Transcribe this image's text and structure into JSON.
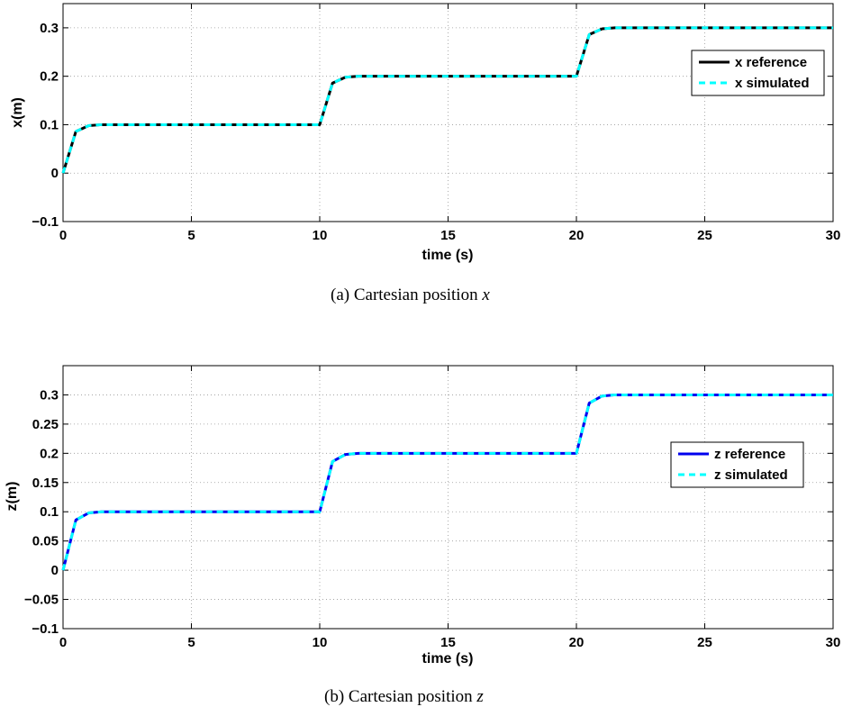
{
  "chart_data": [
    {
      "type": "line",
      "xlabel": "time (s)",
      "ylabel": "x(m)",
      "xlim": [
        0,
        30
      ],
      "ylim": [
        -0.1,
        0.35
      ],
      "xticks": [
        "0",
        "5",
        "10",
        "15",
        "20",
        "25",
        "30"
      ],
      "yticks": [
        "−0.1",
        "0",
        "0.1",
        "0.2",
        "0.3"
      ],
      "grid": true,
      "legend_position": "upper-right",
      "caption_prefix": "(a)  Cartesian position ",
      "caption_var": "x",
      "x": [
        0,
        0.5,
        1,
        1.5,
        2,
        5,
        9.9,
        10,
        10.5,
        11,
        11.5,
        12,
        15,
        19.9,
        20,
        20.5,
        21,
        21.5,
        22,
        25,
        30
      ],
      "series": [
        {
          "name": "x reference",
          "color": "#000000",
          "values": [
            0,
            0.086,
            0.098,
            0.1,
            0.1,
            0.1,
            0.1,
            0.1,
            0.186,
            0.198,
            0.2,
            0.2,
            0.2,
            0.2,
            0.2,
            0.286,
            0.298,
            0.3,
            0.3,
            0.3,
            0.3
          ]
        },
        {
          "name": "x simulated",
          "color": "#00ffff",
          "values": [
            0,
            0.086,
            0.098,
            0.1,
            0.1,
            0.1,
            0.1,
            0.1,
            0.186,
            0.198,
            0.2,
            0.2,
            0.2,
            0.2,
            0.2,
            0.286,
            0.298,
            0.3,
            0.3,
            0.3,
            0.3
          ]
        }
      ]
    },
    {
      "type": "line",
      "xlabel": "time (s)",
      "ylabel": "z(m)",
      "xlim": [
        0,
        30
      ],
      "ylim": [
        -0.1,
        0.35
      ],
      "xticks": [
        "0",
        "5",
        "10",
        "15",
        "20",
        "25",
        "30"
      ],
      "yticks": [
        "−0.1",
        "−0.05",
        "0",
        "0.05",
        "0.1",
        "0.15",
        "0.2",
        "0.25",
        "0.3"
      ],
      "grid": true,
      "legend_position": "right",
      "caption_prefix": "(b) Cartesian position ",
      "caption_var": "z",
      "x": [
        0,
        0.5,
        1,
        1.5,
        2,
        5,
        9.9,
        10,
        10.5,
        11,
        11.5,
        12,
        15,
        19.9,
        20,
        20.5,
        21,
        21.5,
        22,
        25,
        30
      ],
      "series": [
        {
          "name": "z reference",
          "color": "#0000ee",
          "values": [
            0,
            0.086,
            0.098,
            0.1,
            0.1,
            0.1,
            0.1,
            0.1,
            0.186,
            0.198,
            0.2,
            0.2,
            0.2,
            0.2,
            0.2,
            0.286,
            0.298,
            0.3,
            0.3,
            0.3,
            0.3
          ]
        },
        {
          "name": "z simulated",
          "color": "#00ffff",
          "values": [
            0,
            0.086,
            0.098,
            0.1,
            0.1,
            0.1,
            0.1,
            0.1,
            0.186,
            0.198,
            0.2,
            0.2,
            0.2,
            0.2,
            0.2,
            0.286,
            0.298,
            0.3,
            0.3,
            0.3,
            0.3
          ]
        }
      ]
    }
  ]
}
